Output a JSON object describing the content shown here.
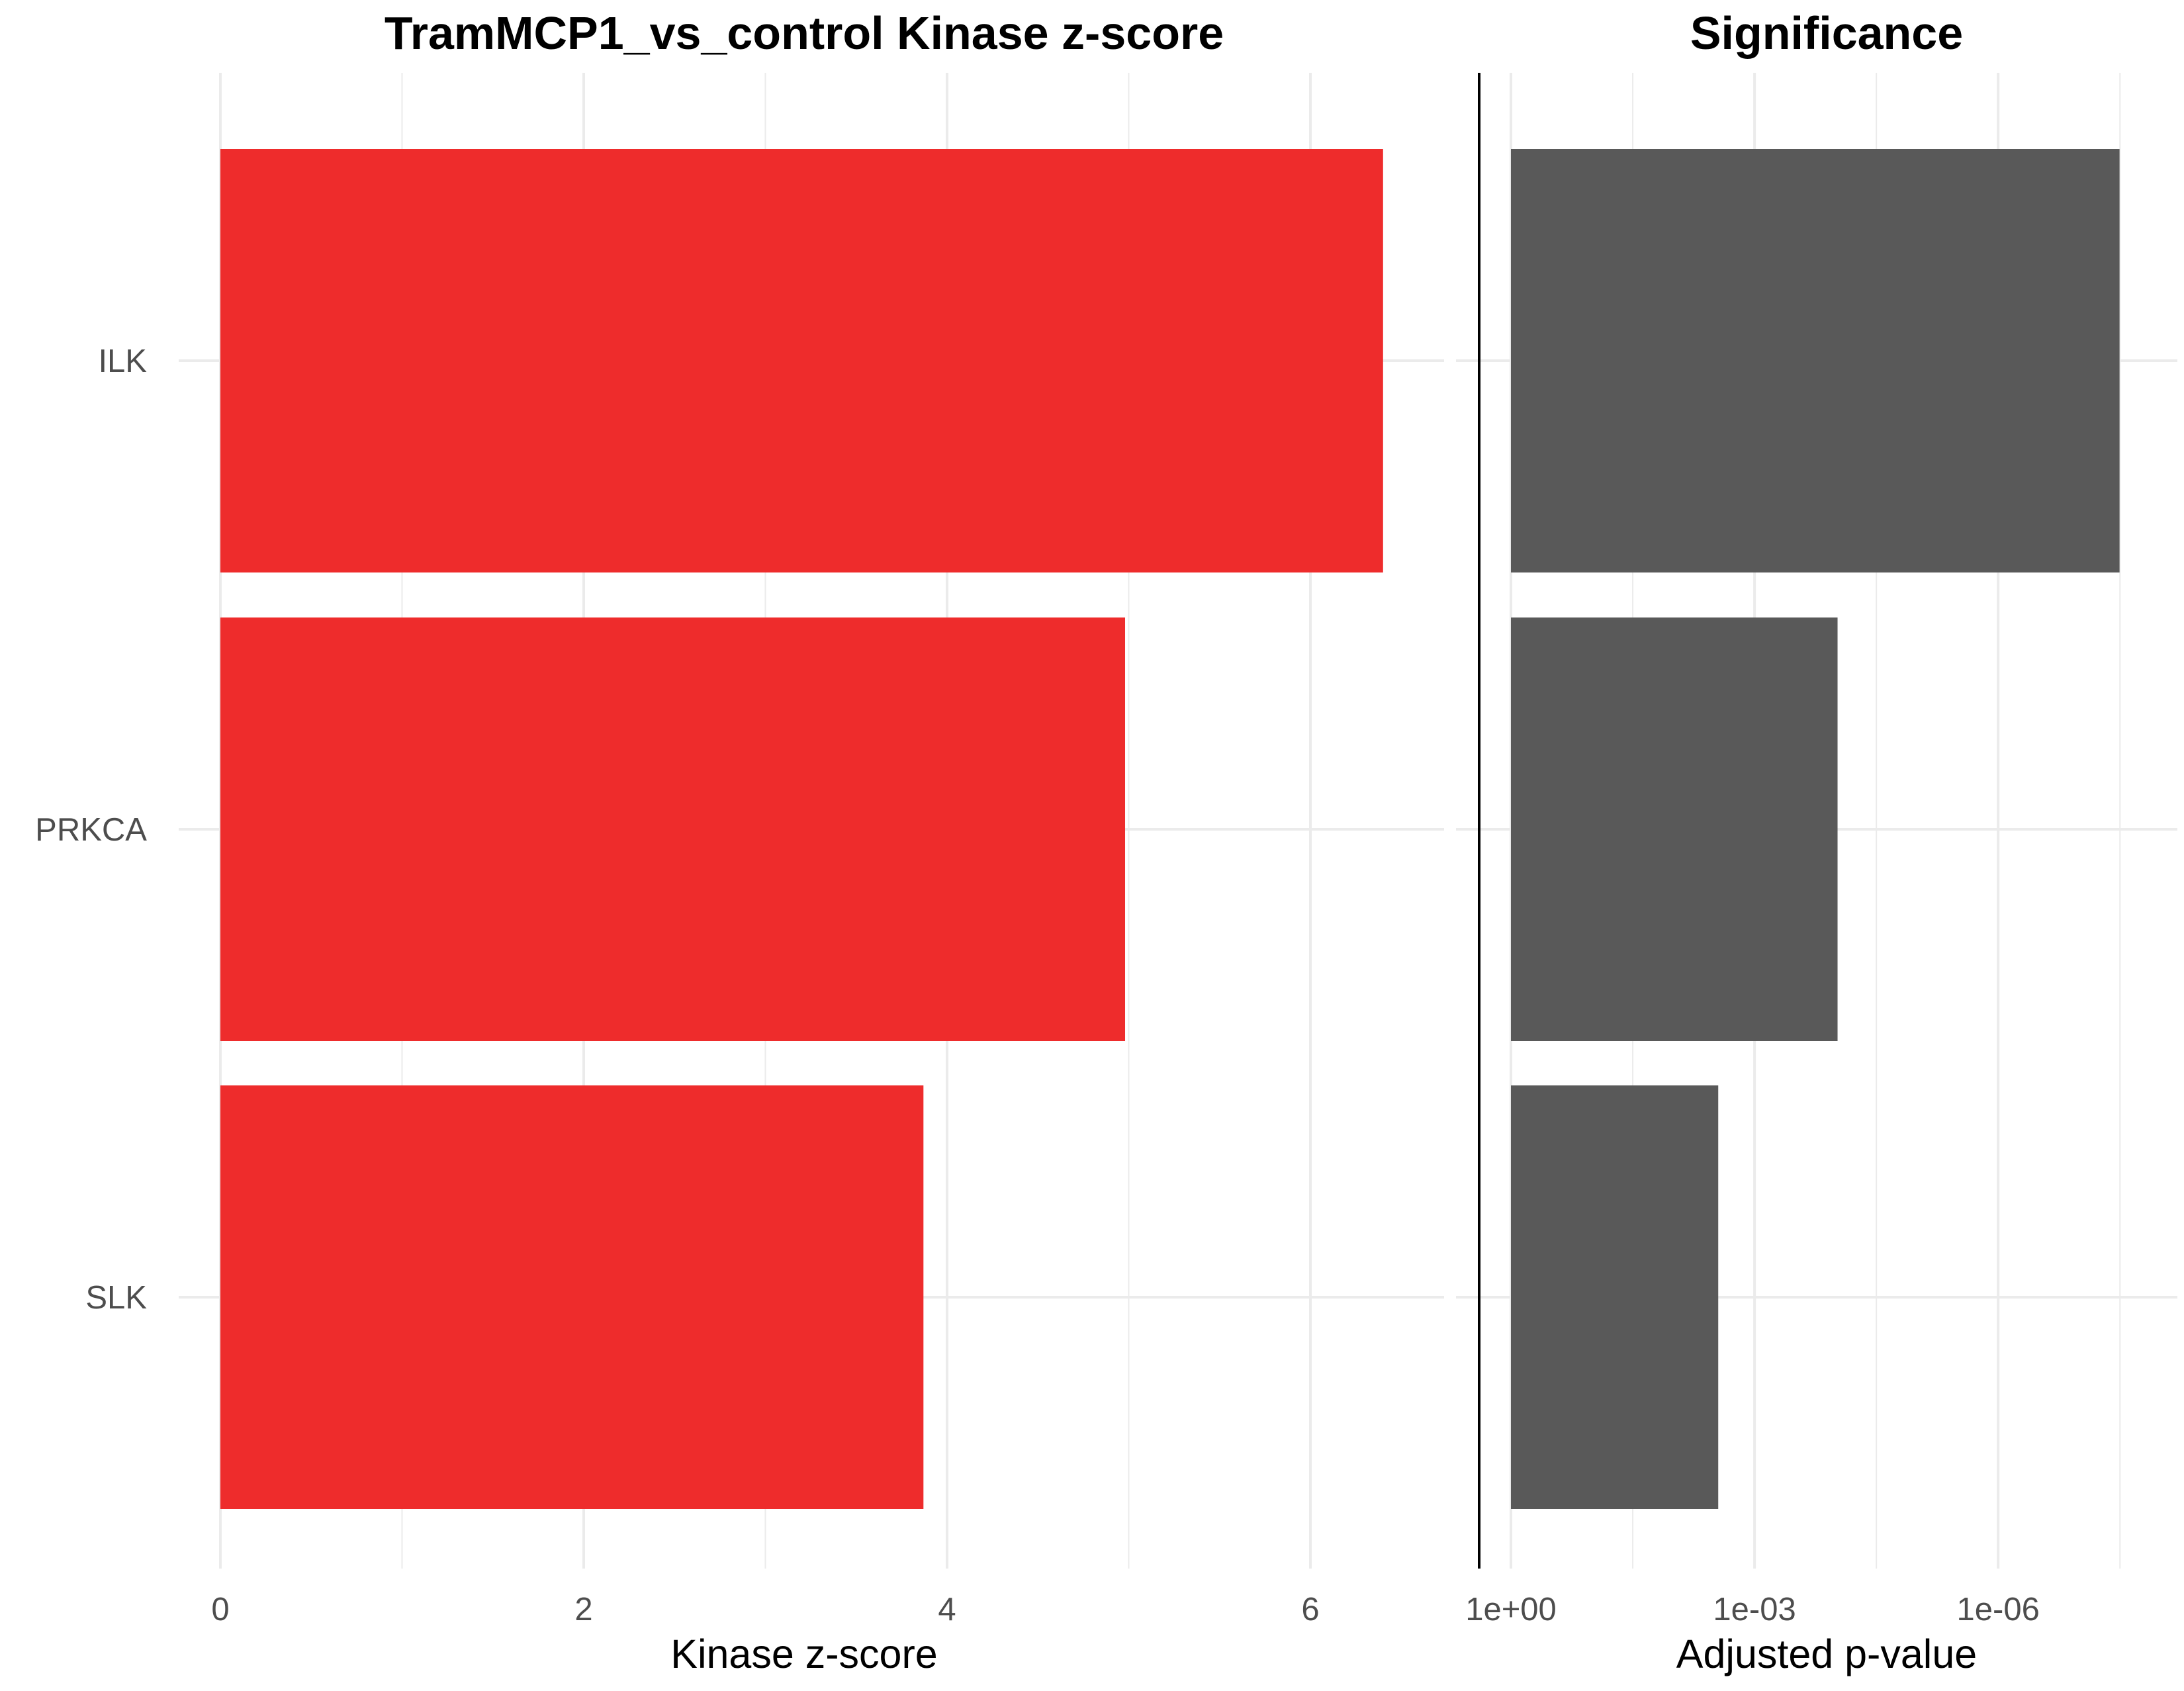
{
  "chart_data": [
    {
      "type": "bar",
      "orientation": "horizontal",
      "title": "TramMCP1_vs_control Kinase z-score",
      "xlabel": "Kinase z-score",
      "ylabel": "",
      "categories": [
        "ILK",
        "PRKCA",
        "SLK"
      ],
      "values": [
        6.4,
        4.98,
        3.87
      ],
      "xlim": [
        0,
        6.75
      ],
      "xticks": [
        0,
        2,
        4,
        6
      ],
      "xtick_labels": [
        "0",
        "2",
        "4",
        "6"
      ],
      "bar_color": "#EE2C2C",
      "grid": true,
      "legend": "none"
    },
    {
      "type": "bar",
      "orientation": "horizontal",
      "title": "Significance",
      "xlabel": "Adjusted p-value",
      "ylabel": "",
      "categories": [
        "ILK",
        "PRKCA",
        "SLK"
      ],
      "values": [
        3.2e-08,
        9.5e-05,
        0.0028
      ],
      "x_scale": "log10-reversed",
      "xlim": [
        1,
        4e-09
      ],
      "xticks": [
        1,
        0.001,
        1e-06
      ],
      "xtick_labels": [
        "1e+00",
        "1e-03",
        "1e-06"
      ],
      "bar_color": "#595959",
      "zero_line": true,
      "grid": true,
      "legend": "none"
    }
  ]
}
